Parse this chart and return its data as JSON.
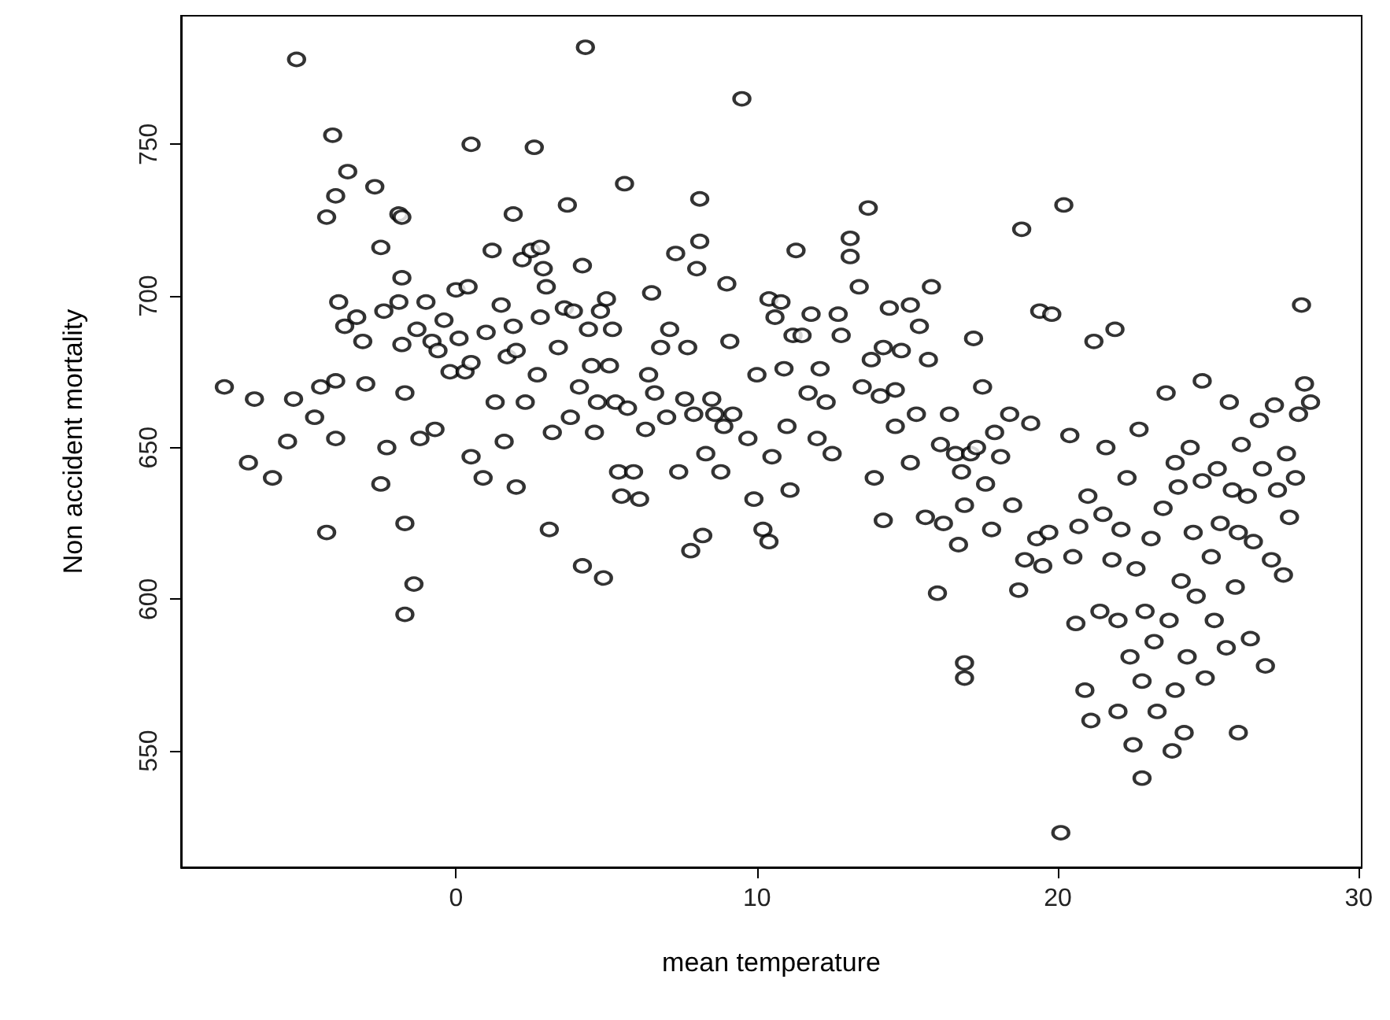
{
  "chart_data": {
    "type": "scatter",
    "xlabel": "mean temperature",
    "ylabel": "Non accident mortality",
    "xlim": [
      -9.14,
      30.1
    ],
    "ylim": [
      511.6,
      792.4
    ],
    "xticks": [
      0,
      10,
      20,
      30
    ],
    "yticks": [
      550,
      600,
      650,
      700,
      750
    ],
    "grid": false,
    "marker": "circle",
    "series": [
      {
        "color": "#000000",
        "x": [
          -7.7,
          -6.9,
          -6.7,
          -6.1,
          -5.6,
          -5.4,
          -5.3,
          -4.7,
          -4.5,
          -4.3,
          -4.3,
          -4.1,
          -4.0,
          -4.0,
          -4.0,
          -3.9,
          -3.7,
          -3.6,
          -3.3,
          -3.1,
          -3.0,
          -2.7,
          -2.5,
          -2.5,
          -2.3,
          -2.4,
          -1.9,
          -1.8,
          -1.9,
          -1.8,
          -1.7,
          -1.8,
          -1.7,
          -1.7,
          -1.4,
          -1.3,
          -1.2,
          -1.0,
          -0.8,
          -0.7,
          -0.6,
          -0.4,
          -0.2,
          0,
          0.1,
          0.3,
          0.4,
          0.5,
          0.5,
          0.5,
          0.9,
          1.0,
          1.2,
          1.3,
          1.5,
          1.6,
          1.7,
          1.9,
          1.9,
          2.0,
          2.0,
          2.2,
          2.3,
          2.5,
          2.6,
          2.7,
          2.8,
          2.8,
          2.9,
          3.0,
          3.1,
          3.2,
          3.4,
          3.6,
          3.7,
          3.8,
          3.9,
          4.1,
          4.2,
          4.2,
          4.3,
          4.4,
          4.5,
          4.6,
          4.7,
          4.8,
          4.9,
          5.0,
          5.1,
          5.2,
          5.3,
          5.4,
          5.5,
          5.6,
          5.7,
          5.9,
          6.1,
          6.3,
          6.4,
          6.5,
          6.6,
          6.8,
          7.0,
          7.1,
          7.3,
          7.4,
          7.6,
          7.7,
          7.8,
          7.9,
          8.0,
          8.1,
          8.1,
          8.2,
          8.3,
          8.5,
          8.6,
          8.8,
          8.9,
          9.0,
          9.1,
          9.2,
          9.5,
          9.7,
          9.9,
          10.0,
          10.2,
          10.4,
          10.4,
          10.5,
          10.6,
          10.8,
          10.9,
          11.0,
          11.1,
          11.2,
          11.3,
          11.5,
          11.7,
          11.8,
          12.0,
          12.1,
          12.3,
          12.5,
          12.7,
          12.8,
          13.1,
          13.1,
          13.4,
          13.5,
          13.7,
          13.8,
          13.9,
          14.1,
          14.2,
          14.2,
          14.4,
          14.6,
          14.6,
          14.8,
          15.1,
          15.1,
          15.3,
          15.4,
          15.6,
          15.7,
          15.8,
          16.0,
          16.1,
          16.2,
          16.4,
          16.6,
          16.7,
          16.8,
          16.9,
          16.9,
          16.9,
          17.1,
          17.2,
          17.3,
          17.5,
          17.6,
          17.8,
          17.9,
          18.1,
          18.4,
          18.5,
          18.7,
          18.8,
          18.9,
          19.1,
          19.3,
          19.4,
          19.5,
          19.7,
          19.8,
          20.1,
          20.2,
          20.4,
          20.5,
          20.6,
          20.7,
          20.9,
          21.0,
          21.1,
          21.2,
          21.4,
          21.5,
          21.6,
          21.8,
          21.9,
          22.0,
          22.0,
          22.1,
          22.3,
          22.4,
          22.5,
          22.6,
          22.7,
          22.8,
          22.8,
          22.9,
          23.1,
          23.2,
          23.3,
          23.5,
          23.6,
          23.7,
          23.8,
          23.9,
          23.9,
          24.0,
          24.1,
          24.2,
          24.3,
          24.4,
          24.5,
          24.6,
          24.8,
          24.8,
          24.9,
          25.1,
          25.2,
          25.3,
          25.4,
          25.6,
          25.7,
          25.8,
          25.9,
          26.0,
          26.0,
          26.1,
          26.3,
          26.4,
          26.5,
          26.7,
          26.8,
          26.9,
          27.1,
          27.2,
          27.3,
          27.5,
          27.6,
          27.7,
          27.9,
          28.0,
          28.1,
          28.2,
          28.4
        ],
        "values": [
          670,
          645,
          666,
          640,
          652,
          666,
          778,
          660,
          670,
          726,
          622,
          753,
          733,
          672,
          653,
          698,
          690,
          741,
          693,
          685,
          671,
          736,
          716,
          638,
          650,
          695,
          727,
          726,
          698,
          684,
          668,
          706,
          625,
          595,
          605,
          689,
          653,
          698,
          685,
          656,
          682,
          692,
          675,
          702,
          686,
          675,
          703,
          750,
          678,
          647,
          640,
          688,
          715,
          665,
          697,
          652,
          680,
          727,
          690,
          682,
          637,
          712,
          665,
          715,
          749,
          674,
          693,
          716,
          709,
          703,
          623,
          655,
          683,
          696,
          730,
          660,
          695,
          670,
          710,
          611,
          782,
          689,
          677,
          655,
          665,
          695,
          607,
          699,
          677,
          689,
          665,
          642,
          634,
          737,
          663,
          642,
          633,
          656,
          674,
          701,
          668,
          683,
          660,
          689,
          714,
          642,
          666,
          683,
          616,
          661,
          709,
          732,
          718,
          621,
          648,
          666,
          661,
          642,
          657,
          704,
          685,
          661,
          765,
          653,
          633,
          674,
          623,
          619,
          699,
          647,
          693,
          698,
          676,
          657,
          636,
          687,
          715,
          687,
          668,
          694,
          653,
          676,
          665,
          648,
          694,
          687,
          719,
          713,
          703,
          670,
          729,
          679,
          640,
          667,
          626,
          683,
          696,
          657,
          669,
          682,
          645,
          697,
          661,
          690,
          627,
          679,
          703,
          602,
          651,
          625,
          661,
          648,
          618,
          642,
          631,
          579,
          574,
          648,
          686,
          650,
          670,
          638,
          623,
          655,
          647,
          661,
          631,
          603,
          722,
          613,
          658,
          620,
          695,
          611,
          622,
          694,
          523,
          730,
          654,
          614,
          592,
          624,
          570,
          634,
          560,
          685,
          596,
          628,
          650,
          613,
          689,
          563,
          593,
          623,
          640,
          581,
          552,
          610,
          656,
          541,
          573,
          596,
          620,
          586,
          563,
          630,
          668,
          593,
          550,
          645,
          570,
          637,
          606,
          556,
          581,
          650,
          622,
          601,
          672,
          639,
          574,
          614,
          593,
          643,
          625,
          584,
          665,
          636,
          604,
          622,
          556,
          651,
          634,
          587,
          619,
          659,
          643,
          578,
          613,
          664,
          636,
          608,
          648,
          627,
          640,
          661,
          697,
          671,
          665
        ]
      }
    ]
  }
}
